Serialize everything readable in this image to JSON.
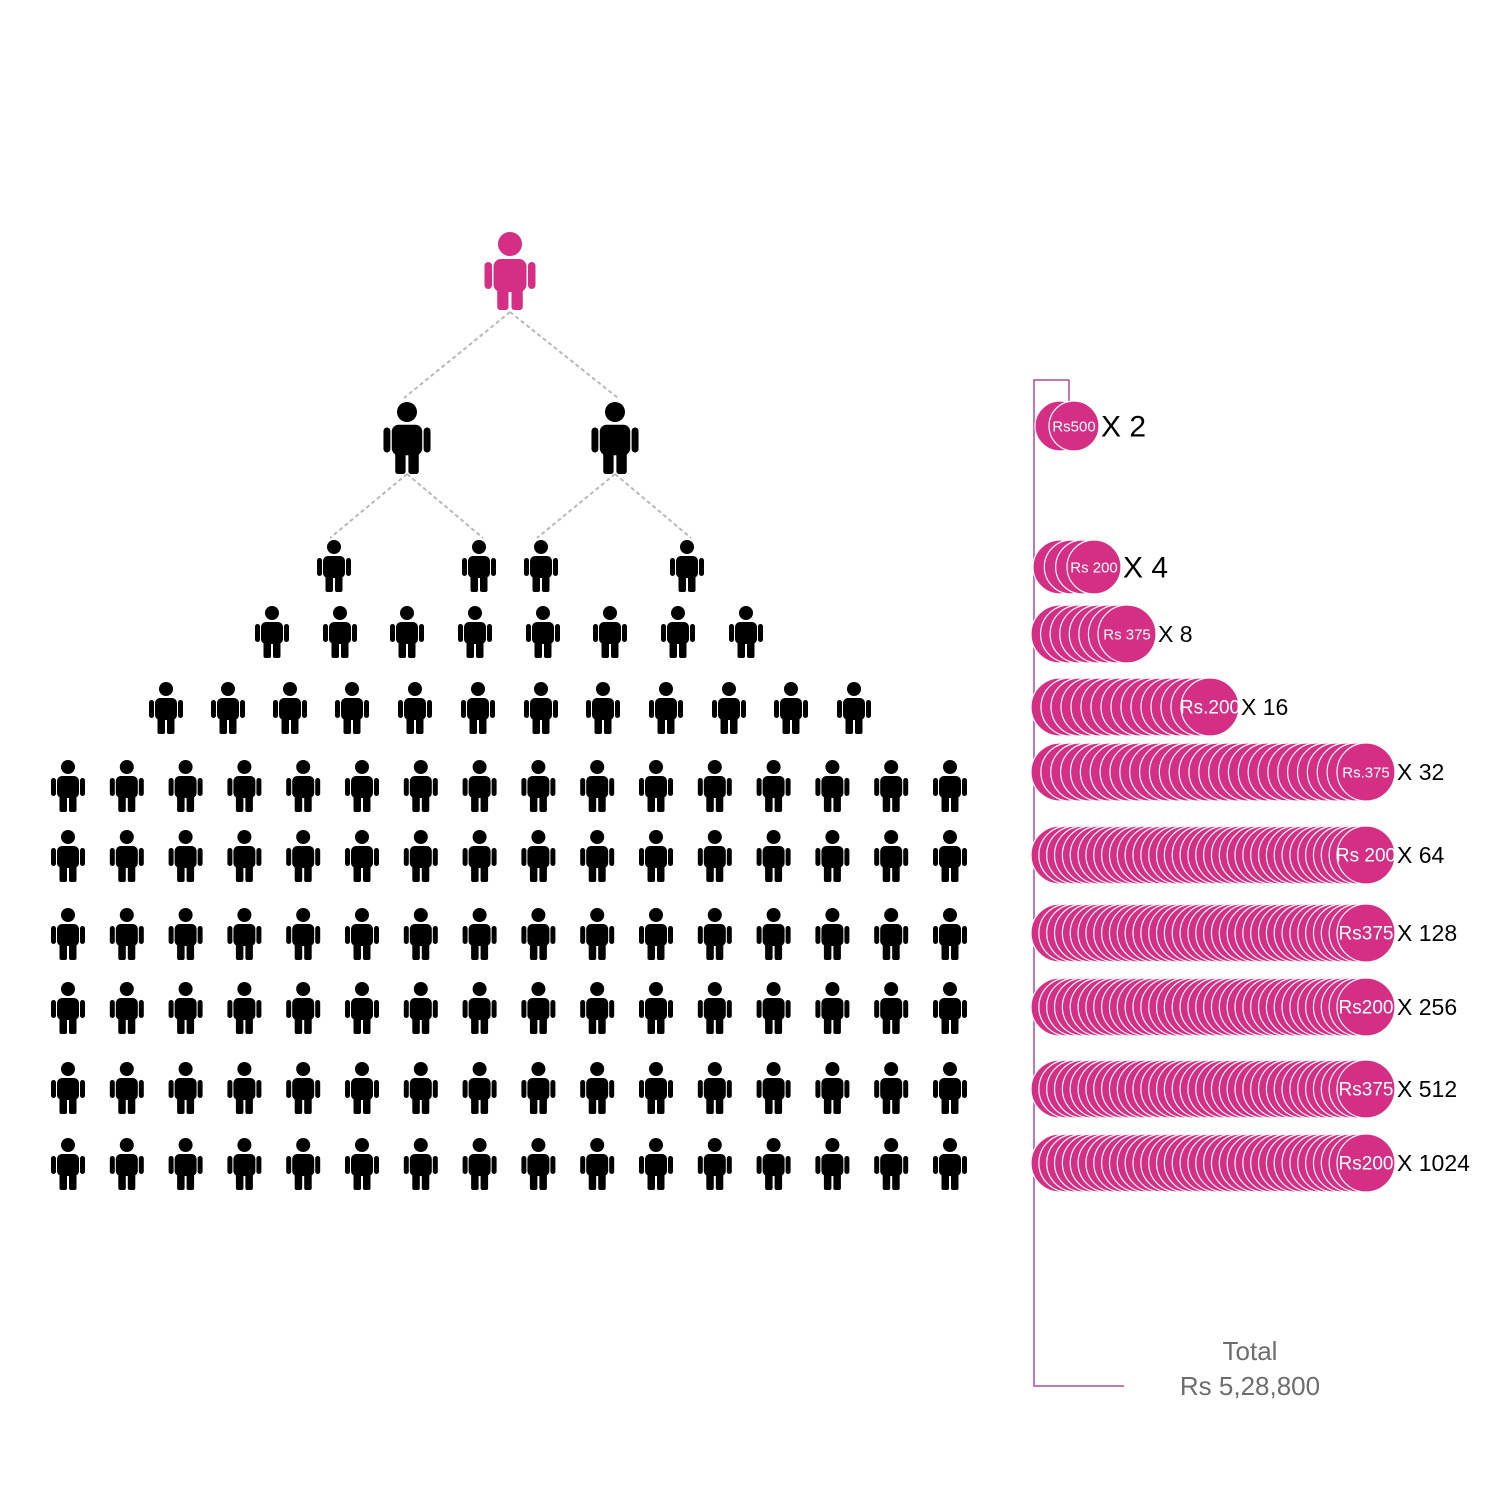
{
  "colors": {
    "accent": "#d42f84",
    "person": "#000000",
    "connector": "#b8b8b8",
    "coin_outline": "#ffffff",
    "bracket": "#b04a9b",
    "total_text": "#6d6d6d"
  },
  "icons": {
    "root": "person-icon",
    "person": "person-icon",
    "coin": "rupee-coin-icon"
  },
  "pyramid": {
    "levels": [
      1,
      2,
      4,
      8,
      12,
      16,
      16,
      16,
      16,
      16,
      16
    ],
    "highlight_level": 0
  },
  "payout_rows": [
    {
      "label": "Rs500",
      "multiplier": "X 2",
      "coins": 2
    },
    {
      "label": "Rs 200",
      "multiplier": "X 4",
      "coins": 4
    },
    {
      "label": "Rs 375",
      "multiplier": "X 8",
      "coins": 8
    },
    {
      "label": "Rs.200",
      "multiplier": "X 16",
      "coins": 16
    },
    {
      "label": "Rs.375",
      "multiplier": "X 32",
      "coins": 32
    },
    {
      "label": "Rs 200",
      "multiplier": "X 64",
      "coins": 64
    },
    {
      "label": "Rs375",
      "multiplier": "X 128",
      "coins": 128
    },
    {
      "label": "Rs200",
      "multiplier": "X 256",
      "coins": 256
    },
    {
      "label": "Rs375",
      "multiplier": "X 512",
      "coins": 512
    },
    {
      "label": "Rs200",
      "multiplier": "X 1024",
      "coins": 1024
    }
  ],
  "total": {
    "label": "Total",
    "value": "Rs 5,28,800"
  }
}
